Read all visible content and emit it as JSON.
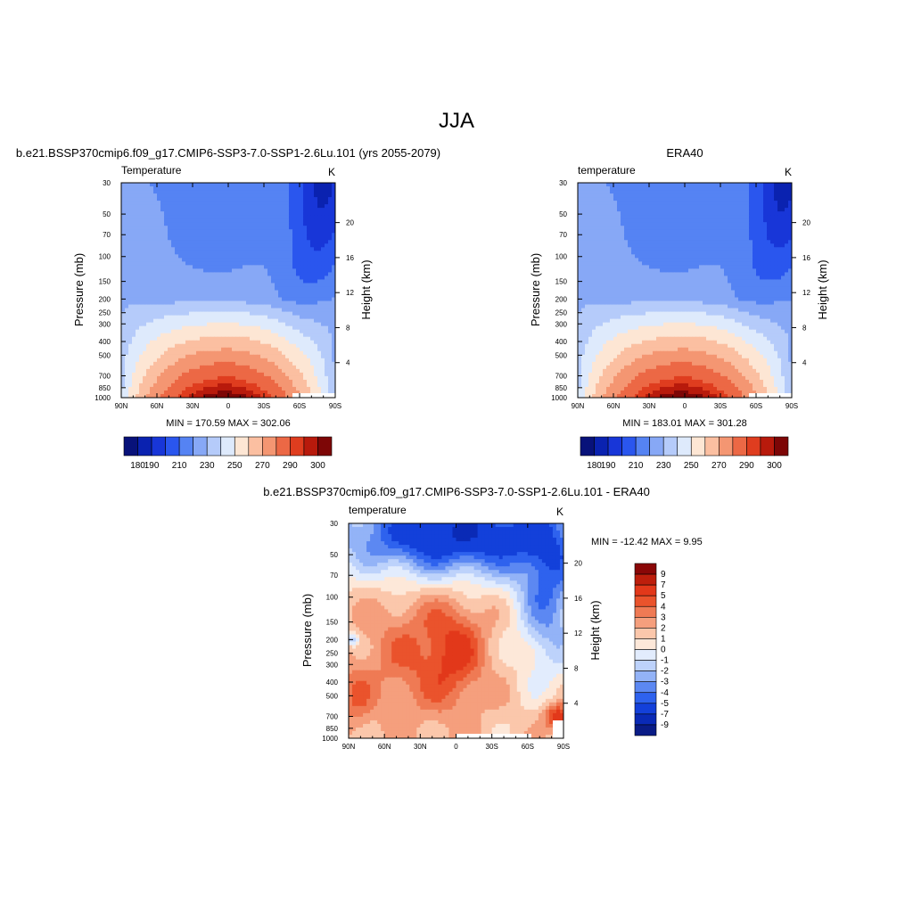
{
  "page": {
    "title": "JJA"
  },
  "colors": {
    "temp_palette": [
      "#08127a",
      "#0a22b0",
      "#1836d8",
      "#2a56ee",
      "#5583f3",
      "#87a8f6",
      "#b5cbfa",
      "#deeafc",
      "#fde6d4",
      "#fbbfa1",
      "#f49672",
      "#ec6845",
      "#df3d1f",
      "#b81a0c",
      "#7d0606"
    ],
    "diff_palette": [
      "#0a1c86",
      "#0a2ab6",
      "#1340da",
      "#2e62ee",
      "#5c88f2",
      "#93b3f7",
      "#bdd2fb",
      "#e2ecfd",
      "#fde8d9",
      "#fbc7ab",
      "#f59f7d",
      "#ef7a54",
      "#ea532c",
      "#e2381a",
      "#bd1e0c",
      "#8a0707"
    ]
  },
  "chart_data": [
    {
      "type": "heatmap",
      "panel_title": "b.e21.BSSP370cmip6.f09_g17.CMIP6-SSP3-7.0-SSP1-2.6Lu.101 (yrs 2055-2079)",
      "left_label": "Temperature",
      "units": "K",
      "ylabel": "Pressure (mb)",
      "ylabel_right": "Height (km)",
      "x_ticks": [
        "90N",
        "60N",
        "30N",
        "0",
        "30S",
        "60S",
        "90S"
      ],
      "x_values": [
        90,
        60,
        30,
        0,
        -30,
        -60,
        -90
      ],
      "y_ticks": [
        "30",
        "50",
        "70",
        "100",
        "150",
        "200",
        "250",
        "300",
        "400",
        "500",
        "700",
        "850",
        "1000"
      ],
      "y_values": [
        30,
        50,
        70,
        100,
        150,
        200,
        250,
        300,
        400,
        500,
        700,
        850,
        1000
      ],
      "y_right_ticks": [
        "20",
        "16",
        "12",
        "8",
        "4"
      ],
      "min_max": "MIN = 170.59  MAX = 302.06",
      "min": 170.59,
      "max": 302.06,
      "colorbar_labels": [
        "180",
        "190",
        "210",
        "230",
        "250",
        "270",
        "290",
        "300"
      ],
      "levels": [
        180,
        190,
        200,
        210,
        220,
        230,
        240,
        250,
        260,
        270,
        280,
        290,
        295,
        300
      ]
    },
    {
      "type": "heatmap",
      "panel_title": "ERA40",
      "left_label": "temperature",
      "units": "K",
      "ylabel": "Pressure (mb)",
      "ylabel_right": "Height (km)",
      "x_ticks": [
        "90N",
        "60N",
        "30N",
        "0",
        "30S",
        "60S",
        "90S"
      ],
      "x_values": [
        90,
        60,
        30,
        0,
        -30,
        -60,
        -90
      ],
      "y_ticks": [
        "30",
        "50",
        "70",
        "100",
        "150",
        "200",
        "250",
        "300",
        "400",
        "500",
        "700",
        "850",
        "1000"
      ],
      "y_values": [
        30,
        50,
        70,
        100,
        150,
        200,
        250,
        300,
        400,
        500,
        700,
        850,
        1000
      ],
      "y_right_ticks": [
        "20",
        "16",
        "12",
        "8",
        "4"
      ],
      "min_max": "MIN = 183.01  MAX = 301.28",
      "min": 183.01,
      "max": 301.28,
      "colorbar_labels": [
        "180",
        "190",
        "210",
        "230",
        "250",
        "270",
        "290",
        "300"
      ],
      "levels": [
        180,
        190,
        200,
        210,
        220,
        230,
        240,
        250,
        260,
        270,
        280,
        290,
        295,
        300
      ]
    },
    {
      "type": "heatmap",
      "panel_title": "b.e21.BSSP370cmip6.f09_g17.CMIP6-SSP3-7.0-SSP1-2.6Lu.101 - ERA40",
      "left_label": "temperature",
      "units": "K",
      "ylabel": "Pressure (mb)",
      "ylabel_right": "Height (km)",
      "x_ticks": [
        "90N",
        "60N",
        "30N",
        "0",
        "30S",
        "60S",
        "90S"
      ],
      "x_values": [
        90,
        60,
        30,
        0,
        -30,
        -60,
        -90
      ],
      "y_ticks": [
        "30",
        "50",
        "70",
        "100",
        "150",
        "200",
        "250",
        "300",
        "400",
        "500",
        "700",
        "850",
        "1000"
      ],
      "y_values": [
        30,
        50,
        70,
        100,
        150,
        200,
        250,
        300,
        400,
        500,
        700,
        850,
        1000
      ],
      "y_right_ticks": [
        "20",
        "16",
        "12",
        "8",
        "4"
      ],
      "min_max": "MIN = -12.42  MAX =   9.95",
      "min": -12.42,
      "max": 9.95,
      "colorbar_labels": [
        "9",
        "7",
        "5",
        "4",
        "3",
        "2",
        "1",
        "0",
        "-1",
        "-2",
        "-3",
        "-4",
        "-5",
        "-7",
        "-9"
      ],
      "levels": [
        -9,
        -7,
        -5,
        -4,
        -3,
        -2,
        -1,
        0,
        1,
        2,
        3,
        4,
        5,
        7,
        9
      ]
    }
  ]
}
